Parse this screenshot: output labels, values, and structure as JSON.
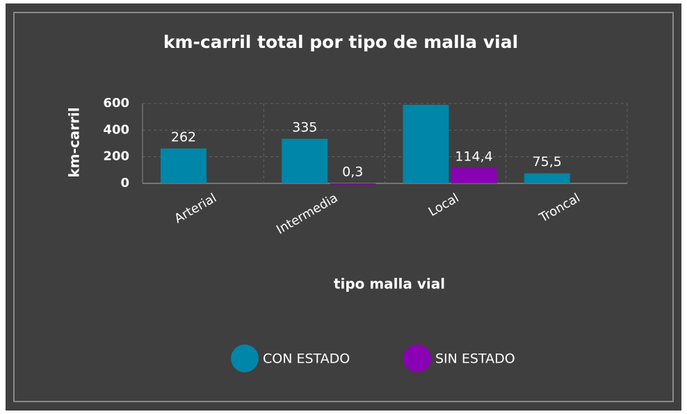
{
  "chart_data": {
    "type": "bar",
    "title": "km-carril total por tipo de malla vial",
    "x_label": "tipo malla vial",
    "y_label": "km-carril",
    "categories": [
      "Arterial",
      "Intermedia",
      "Local",
      "Troncal"
    ],
    "series": [
      {
        "name": "CON ESTADO",
        "color": "#0086a8",
        "values": [
          262,
          335,
          590,
          75.5
        ],
        "value_labels": [
          "262",
          "335",
          null,
          "75,5"
        ]
      },
      {
        "name": "SIN ESTADO",
        "color": "#8a00b4",
        "values": [
          null,
          0.3,
          114.4,
          null
        ],
        "value_labels": [
          null,
          "0,3",
          "114,4",
          null
        ]
      }
    ],
    "ylim": [
      0,
      600
    ],
    "yticks": [
      0,
      200,
      400,
      600
    ],
    "grid": true,
    "legend": "bottom"
  }
}
